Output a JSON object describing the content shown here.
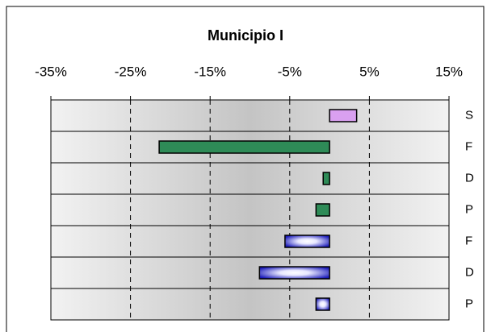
{
  "chart_data": {
    "type": "bar",
    "orientation": "horizontal",
    "title": "Municipio I",
    "categories": [
      "S",
      "F",
      "D",
      "P",
      "F",
      "D",
      "P"
    ],
    "values": [
      3.4,
      -21.4,
      -0.8,
      -1.7,
      -5.6,
      -8.8,
      -1.7
    ],
    "colors": [
      "#d9a0f0",
      "#2e8b57",
      "#2e8b57",
      "#2e8b57",
      "blue-gradient",
      "blue-gradient",
      "blue-gradient"
    ],
    "xlim": [
      -35,
      15
    ],
    "xticks": [
      {
        "value": -35,
        "label": "-35%"
      },
      {
        "value": -25,
        "label": "-25%"
      },
      {
        "value": -15,
        "label": "-15%"
      },
      {
        "value": -5,
        "label": "-5%"
      },
      {
        "value": 5,
        "label": "5%"
      },
      {
        "value": 15,
        "label": "15%"
      }
    ],
    "grid": true
  }
}
